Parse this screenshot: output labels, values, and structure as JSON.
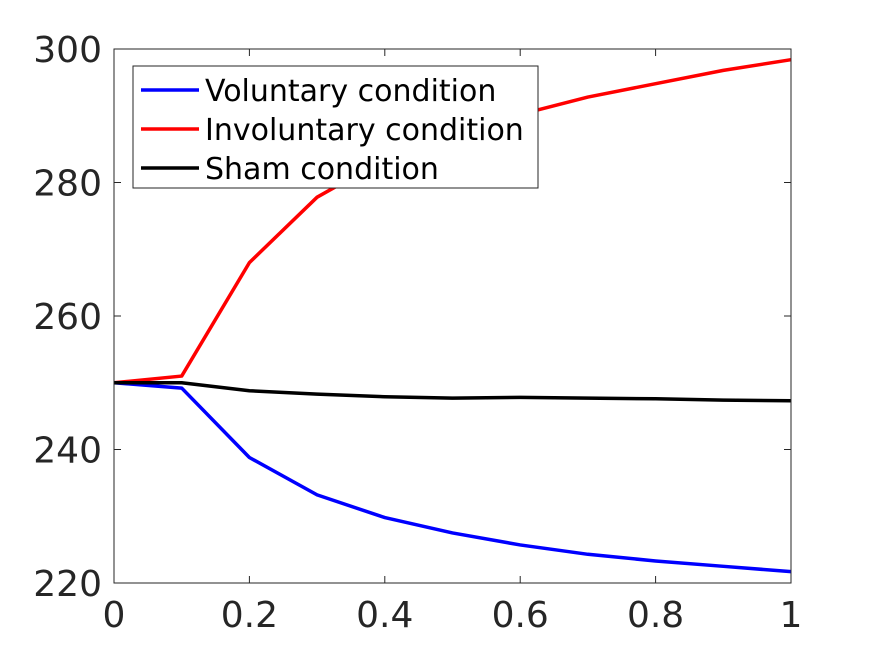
{
  "chart_data": {
    "type": "line",
    "xlim": [
      0,
      1
    ],
    "ylim": [
      220,
      300
    ],
    "xticks": [
      0,
      0.2,
      0.4,
      0.6,
      0.8,
      1
    ],
    "xtick_labels": [
      "0",
      "0.2",
      "0.4",
      "0.6",
      "0.8",
      "1"
    ],
    "yticks": [
      220,
      240,
      260,
      280,
      300
    ],
    "ytick_labels": [
      "220",
      "240",
      "260",
      "280",
      "300"
    ],
    "grid": false,
    "legend_position": "top-left",
    "x": [
      0,
      0.1,
      0.2,
      0.3,
      0.4,
      0.5,
      0.6,
      0.7,
      0.8,
      0.9,
      1.0
    ],
    "series": [
      {
        "name": "Voluntary condition",
        "color": "#0000ff",
        "values": [
          250,
          249.2,
          238.8,
          233.2,
          229.8,
          227.5,
          225.7,
          224.3,
          223.3,
          222.5,
          221.7
        ]
      },
      {
        "name": "Involuntary condition",
        "color": "#ff0000",
        "values": [
          250,
          251,
          268,
          277.8,
          283.5,
          287.2,
          290.2,
          292.8,
          294.8,
          296.8,
          298.4
        ]
      },
      {
        "name": "Sham condition",
        "color": "#000000",
        "values": [
          250,
          250,
          248.8,
          248.3,
          247.9,
          247.7,
          247.8,
          247.7,
          247.6,
          247.4,
          247.3
        ]
      }
    ]
  }
}
